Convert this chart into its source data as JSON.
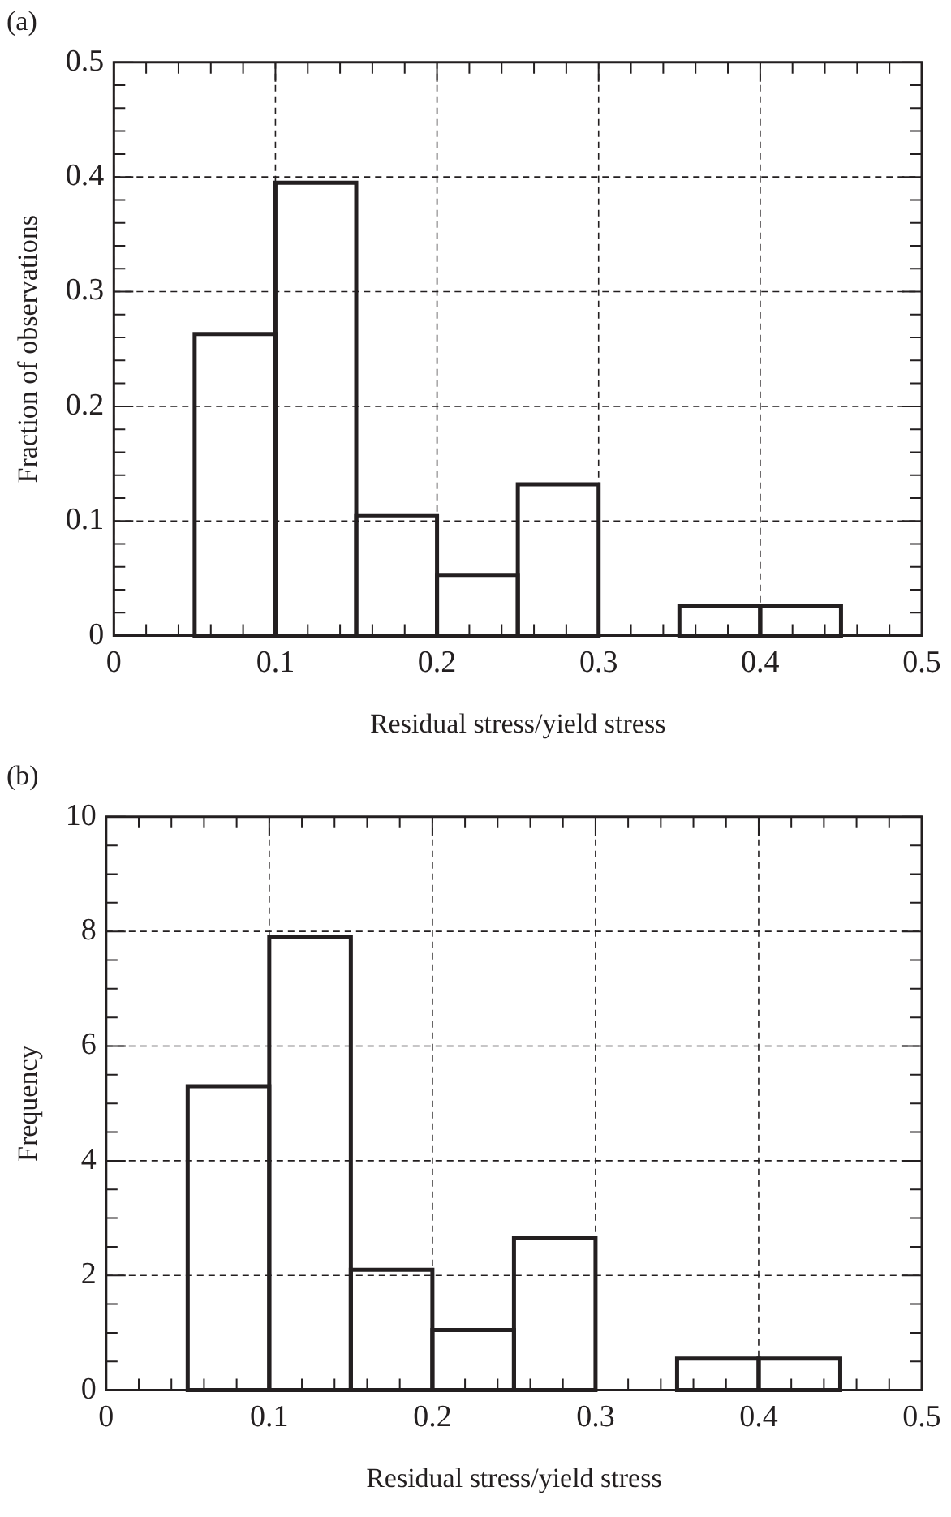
{
  "chart_data": [
    {
      "type": "histogram",
      "title": "(a)",
      "xlabel": "Residual stress/yield stress",
      "ylabel": "Fraction of observations",
      "bins": [
        0,
        0.05,
        0.1,
        0.15,
        0.2,
        0.25,
        0.3,
        0.35,
        0.4,
        0.45,
        0.5
      ],
      "values": [
        0,
        0.263,
        0.395,
        0.105,
        0.053,
        0.132,
        0,
        0.026,
        0.026,
        0
      ],
      "color": "#231f20",
      "xlim": [
        0,
        0.5
      ],
      "ylim": [
        0,
        0.5
      ],
      "xticks": [
        0,
        {
          "value": 0.02,
          "label": null
        },
        {
          "value": 0.04,
          "label": null
        },
        {
          "value": 0.06,
          "label": null
        },
        {
          "value": 0.08,
          "label": null
        },
        0.1,
        {
          "value": 0.12,
          "label": null
        },
        {
          "value": 0.14,
          "label": null
        },
        {
          "value": 0.16,
          "label": null
        },
        {
          "value": 0.18,
          "label": null
        },
        0.2,
        {
          "value": 0.22,
          "label": null
        },
        {
          "value": 0.24,
          "label": null
        },
        {
          "value": 0.26,
          "label": null
        },
        {
          "value": 0.28,
          "label": null
        },
        0.3,
        {
          "value": 0.32,
          "label": null
        },
        {
          "value": 0.34,
          "label": null
        },
        {
          "value": 0.36,
          "label": null
        },
        {
          "value": 0.38,
          "label": null
        },
        0.4,
        {
          "value": 0.42,
          "label": null
        },
        {
          "value": 0.44,
          "label": null
        },
        {
          "value": 0.46,
          "label": null
        },
        {
          "value": 0.48,
          "label": null
        },
        0.5
      ],
      "yticks": [
        0,
        {
          "value": 0.02,
          "label": null
        },
        {
          "value": 0.04,
          "label": null
        },
        {
          "value": 0.06,
          "label": null
        },
        {
          "value": 0.08,
          "label": null
        },
        0.1,
        {
          "value": 0.12,
          "label": null
        },
        {
          "value": 0.14,
          "label": null
        },
        {
          "value": 0.16,
          "label": null
        },
        {
          "value": 0.18,
          "label": null
        },
        0.2,
        {
          "value": 0.22,
          "label": null
        },
        {
          "value": 0.24,
          "label": null
        },
        {
          "value": 0.26,
          "label": null
        },
        {
          "value": 0.28,
          "label": null
        },
        0.3,
        {
          "value": 0.32,
          "label": null
        },
        {
          "value": 0.34,
          "label": null
        },
        {
          "value": 0.36,
          "label": null
        },
        {
          "value": 0.38,
          "label": null
        },
        0.4,
        {
          "value": 0.42,
          "label": null
        },
        {
          "value": 0.44,
          "label": null
        },
        {
          "value": 0.46,
          "label": null
        },
        {
          "value": 0.48,
          "label": null
        },
        0.5
      ],
      "grid": true
    },
    {
      "type": "histogram",
      "title": "(b)",
      "xlabel": "Residual stress/yield stress",
      "ylabel": "Frequency",
      "bins": [
        0,
        0.05,
        0.1,
        0.15,
        0.2,
        0.25,
        0.3,
        0.35,
        0.4,
        0.45,
        0.5
      ],
      "values": [
        0,
        5.3,
        7.9,
        2.1,
        1.05,
        2.65,
        0,
        0.55,
        0.55,
        0
      ],
      "color": "#231f20",
      "xlim": [
        0,
        0.5
      ],
      "ylim": [
        0,
        10
      ],
      "xticks": [
        0,
        {
          "value": 0.02,
          "label": null
        },
        {
          "value": 0.04,
          "label": null
        },
        {
          "value": 0.06,
          "label": null
        },
        {
          "value": 0.08,
          "label": null
        },
        0.1,
        {
          "value": 0.12,
          "label": null
        },
        {
          "value": 0.14,
          "label": null
        },
        {
          "value": 0.16,
          "label": null
        },
        {
          "value": 0.18,
          "label": null
        },
        0.2,
        {
          "value": 0.22,
          "label": null
        },
        {
          "value": 0.24,
          "label": null
        },
        {
          "value": 0.26,
          "label": null
        },
        {
          "value": 0.28,
          "label": null
        },
        0.3,
        {
          "value": 0.32,
          "label": null
        },
        {
          "value": 0.34,
          "label": null
        },
        {
          "value": 0.36,
          "label": null
        },
        {
          "value": 0.38,
          "label": null
        },
        0.4,
        {
          "value": 0.42,
          "label": null
        },
        {
          "value": 0.44,
          "label": null
        },
        {
          "value": 0.46,
          "label": null
        },
        {
          "value": 0.48,
          "label": null
        },
        0.5
      ],
      "yticks": [
        0,
        {
          "value": 0.5,
          "label": null
        },
        {
          "value": 1,
          "label": null
        },
        {
          "value": 1.5,
          "label": null
        },
        2,
        {
          "value": 2.5,
          "label": null
        },
        {
          "value": 3,
          "label": null
        },
        {
          "value": 3.5,
          "label": null
        },
        4,
        {
          "value": 4.5,
          "label": null
        },
        {
          "value": 5,
          "label": null
        },
        {
          "value": 5.5,
          "label": null
        },
        6,
        {
          "value": 6.5,
          "label": null
        },
        {
          "value": 7,
          "label": null
        },
        {
          "value": 7.5,
          "label": null
        },
        8,
        {
          "value": 8.5,
          "label": null
        },
        {
          "value": 9,
          "label": null
        },
        {
          "value": 9.5,
          "label": null
        },
        10
      ],
      "grid": true
    }
  ]
}
